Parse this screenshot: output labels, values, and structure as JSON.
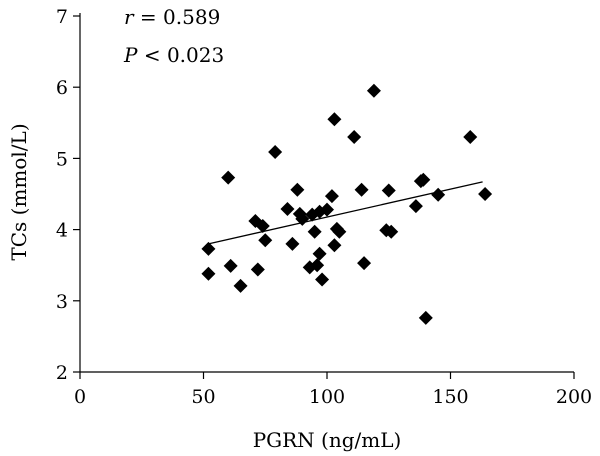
{
  "chart_data": {
    "type": "scatter",
    "xlabel": "PGRN (ng/mL)",
    "ylabel": "TCs (mmol/L)",
    "xlim": [
      0,
      200
    ],
    "ylim": [
      2,
      7
    ],
    "x_ticks": [
      "0",
      "50",
      "100",
      "150",
      "200"
    ],
    "y_ticks": [
      "2",
      "3",
      "4",
      "5",
      "6",
      "7"
    ],
    "annotations": {
      "r_symbol": "r",
      "r_value": " = 0.589",
      "p_symbol": "P",
      "p_value": " < 0.023"
    },
    "grid": false,
    "trendline": {
      "x": [
        52,
        163
      ],
      "y": [
        3.8,
        4.67
      ]
    },
    "points": [
      {
        "x": 52,
        "y": 3.73
      },
      {
        "x": 52,
        "y": 3.38
      },
      {
        "x": 60,
        "y": 4.73
      },
      {
        "x": 61,
        "y": 3.49
      },
      {
        "x": 65,
        "y": 3.21
      },
      {
        "x": 71,
        "y": 4.12
      },
      {
        "x": 72,
        "y": 3.44
      },
      {
        "x": 74,
        "y": 4.05
      },
      {
        "x": 75,
        "y": 3.85
      },
      {
        "x": 79,
        "y": 5.09
      },
      {
        "x": 84,
        "y": 4.29
      },
      {
        "x": 86,
        "y": 3.8
      },
      {
        "x": 88,
        "y": 4.56
      },
      {
        "x": 89,
        "y": 4.22
      },
      {
        "x": 90,
        "y": 4.15
      },
      {
        "x": 93,
        "y": 3.47
      },
      {
        "x": 94,
        "y": 4.21
      },
      {
        "x": 95,
        "y": 3.97
      },
      {
        "x": 96,
        "y": 3.5
      },
      {
        "x": 97,
        "y": 4.25
      },
      {
        "x": 97,
        "y": 3.66
      },
      {
        "x": 98,
        "y": 3.3
      },
      {
        "x": 100,
        "y": 4.28
      },
      {
        "x": 102,
        "y": 4.47
      },
      {
        "x": 103,
        "y": 5.55
      },
      {
        "x": 103,
        "y": 3.78
      },
      {
        "x": 104,
        "y": 4.01
      },
      {
        "x": 105,
        "y": 3.97
      },
      {
        "x": 111,
        "y": 5.3
      },
      {
        "x": 114,
        "y": 4.56
      },
      {
        "x": 115,
        "y": 3.53
      },
      {
        "x": 119,
        "y": 5.95
      },
      {
        "x": 124,
        "y": 3.99
      },
      {
        "x": 125,
        "y": 4.55
      },
      {
        "x": 126,
        "y": 3.97
      },
      {
        "x": 136,
        "y": 4.33
      },
      {
        "x": 138,
        "y": 4.68
      },
      {
        "x": 139,
        "y": 4.7
      },
      {
        "x": 140,
        "y": 2.76
      },
      {
        "x": 145,
        "y": 4.49
      },
      {
        "x": 158,
        "y": 5.3
      },
      {
        "x": 164,
        "y": 4.5
      }
    ]
  }
}
